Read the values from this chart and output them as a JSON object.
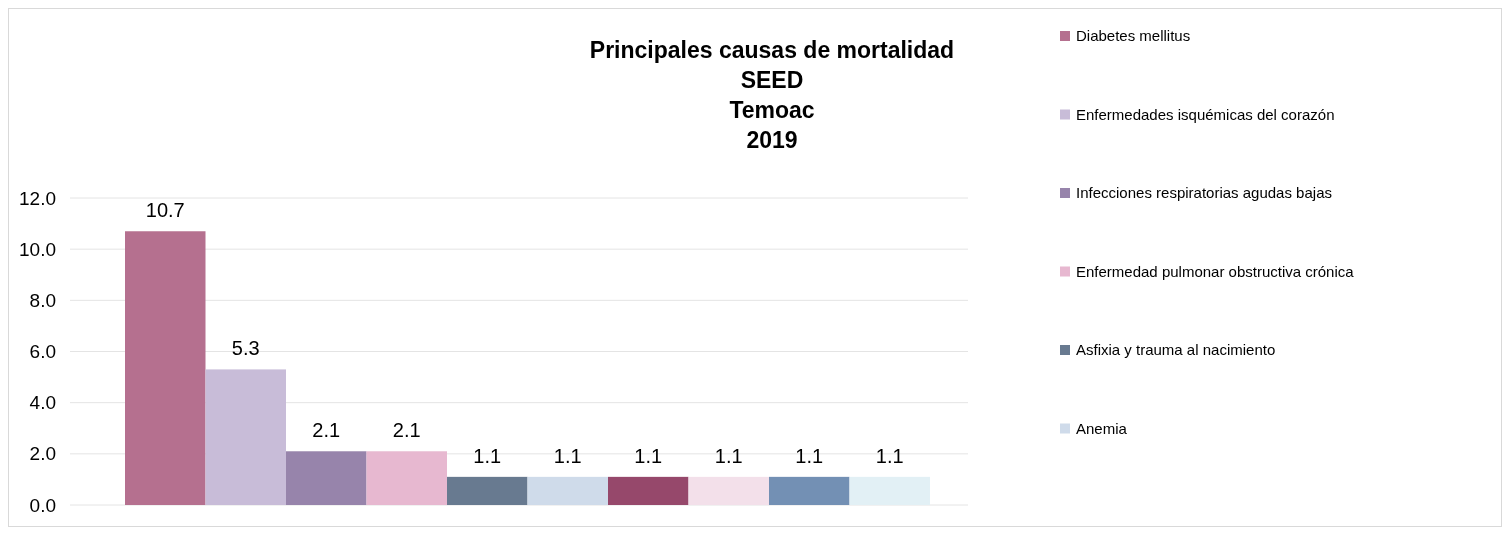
{
  "chart_data": {
    "type": "bar",
    "title": "Principales causas de mortalidad\nSEED\nTemoac\n2019",
    "categories": [
      null
    ],
    "series": [
      {
        "name": "Diabetes mellitus",
        "color": "#b5708f",
        "values": [
          10.7
        ]
      },
      {
        "name": "Enfermedades isquémicas del corazón",
        "color": "#c8bcd8",
        "values": [
          5.3
        ]
      },
      {
        "name": "Infecciones respiratorias agudas bajas",
        "color": "#9784ab",
        "values": [
          2.1
        ]
      },
      {
        "name": "Enfermedad pulmonar obstructiva crónica",
        "color": "#e7b8d0",
        "values": [
          2.1
        ]
      },
      {
        "name": "Asfixia y trauma al nacimiento",
        "color": "#687a90",
        "values": [
          1.1
        ]
      },
      {
        "name": "Anemia",
        "color": "#cfdbea",
        "values": [
          1.1
        ]
      },
      {
        "color": "#96486b",
        "values": [
          1.1
        ]
      },
      {
        "color": "#f3e0ea",
        "values": [
          1.1
        ]
      },
      {
        "color": "#7390b4",
        "values": [
          1.1
        ]
      },
      {
        "color": "#e2f0f5",
        "values": [
          1.1
        ]
      }
    ],
    "ylim": [
      0,
      12
    ],
    "yticks": [
      {
        "value": 0,
        "label": "0.0"
      },
      {
        "value": 2,
        "label": "2.0"
      },
      {
        "value": 4,
        "label": "4.0"
      },
      {
        "value": 6,
        "label": "6.0"
      },
      {
        "value": 8,
        "label": "8.0"
      },
      {
        "value": 10,
        "label": "10.0"
      },
      {
        "value": 12,
        "label": "12.0"
      }
    ],
    "grid": "y",
    "legend": "right",
    "data_labels": true
  }
}
